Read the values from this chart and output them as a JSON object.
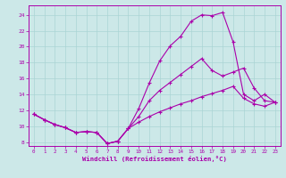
{
  "background_color": "#cce8e8",
  "grid_color": "#aad4d4",
  "line_color": "#aa00aa",
  "xlabel": "Windchill (Refroidissement éolien,°C)",
  "xlim_min": -0.5,
  "xlim_max": 23.5,
  "ylim_min": 7.5,
  "ylim_max": 25.2,
  "xticks": [
    0,
    1,
    2,
    3,
    4,
    5,
    6,
    7,
    8,
    9,
    10,
    11,
    12,
    13,
    14,
    15,
    16,
    17,
    18,
    19,
    20,
    21,
    22,
    23
  ],
  "yticks": [
    8,
    10,
    12,
    14,
    16,
    18,
    20,
    22,
    24
  ],
  "line_top": [
    11.5,
    10.8,
    10.2,
    9.8,
    9.2,
    9.3,
    9.2,
    7.8,
    8.1,
    9.7,
    12.2,
    15.4,
    18.2,
    20.1,
    21.3,
    23.2,
    24.0,
    23.9,
    24.3,
    20.6,
    14.0,
    13.2,
    14.0,
    13.0
  ],
  "line_mid": [
    11.5,
    10.8,
    10.2,
    9.8,
    9.2,
    9.3,
    9.2,
    7.8,
    8.1,
    9.7,
    11.2,
    13.2,
    14.5,
    15.5,
    16.5,
    17.5,
    18.5,
    17.0,
    16.3,
    16.8,
    17.3,
    14.8,
    13.2,
    13.0
  ],
  "line_bot": [
    11.5,
    10.8,
    10.2,
    9.8,
    9.2,
    9.3,
    9.2,
    7.8,
    8.1,
    9.7,
    10.5,
    11.2,
    11.8,
    12.3,
    12.8,
    13.2,
    13.7,
    14.1,
    14.5,
    15.0,
    13.5,
    12.8,
    12.5,
    13.0
  ]
}
